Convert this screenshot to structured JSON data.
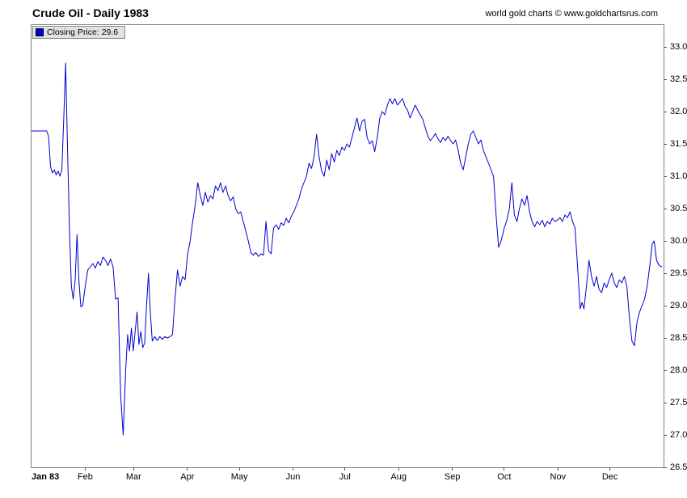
{
  "header": {
    "title": "Crude Oil - Daily 1983",
    "attribution": "world gold charts © www.goldchartsrus.com"
  },
  "legend": {
    "label": "Closing Price: 29.6",
    "swatch_color": "#0000cd"
  },
  "chart_data": {
    "type": "line",
    "title": "Crude Oil - Daily 1983",
    "series_name": "Closing Price",
    "last_value": 29.6,
    "line_color": "#0000cd",
    "grid": false,
    "legend_position": "top-left",
    "y_axis_side": "right",
    "ylim": [
      26.5,
      33.0
    ],
    "y_ticks": [
      26.5,
      27.0,
      27.5,
      28.0,
      28.5,
      29.0,
      29.5,
      30.0,
      30.5,
      31.0,
      31.5,
      32.0,
      32.5,
      33.0
    ],
    "x_tick_labels": [
      {
        "label": "Jan 83",
        "f": 0.0,
        "bold": true
      },
      {
        "label": "Feb",
        "f": 0.0849,
        "bold": false
      },
      {
        "label": "Mar",
        "f": 0.1616,
        "bold": false
      },
      {
        "label": "Apr",
        "f": 0.2466,
        "bold": false
      },
      {
        "label": "May",
        "f": 0.3288,
        "bold": false
      },
      {
        "label": "Jun",
        "f": 0.4137,
        "bold": false
      },
      {
        "label": "Jul",
        "f": 0.4959,
        "bold": false
      },
      {
        "label": "Aug",
        "f": 0.5808,
        "bold": false
      },
      {
        "label": "Sep",
        "f": 0.6658,
        "bold": false
      },
      {
        "label": "Oct",
        "f": 0.7479,
        "bold": false
      },
      {
        "label": "Nov",
        "f": 0.8329,
        "bold": false
      },
      {
        "label": "Dec",
        "f": 0.9151,
        "bold": false
      }
    ],
    "points": [
      [
        0.0,
        31.7
      ],
      [
        0.024,
        31.7
      ],
      [
        0.027,
        31.62
      ],
      [
        0.03,
        31.15
      ],
      [
        0.033,
        31.05
      ],
      [
        0.036,
        31.1
      ],
      [
        0.039,
        31.02
      ],
      [
        0.042,
        31.08
      ],
      [
        0.045,
        31.0
      ],
      [
        0.048,
        31.1
      ],
      [
        0.051,
        31.9
      ],
      [
        0.054,
        32.75
      ],
      [
        0.057,
        31.4
      ],
      [
        0.06,
        30.2
      ],
      [
        0.063,
        29.3
      ],
      [
        0.066,
        29.1
      ],
      [
        0.069,
        29.4
      ],
      [
        0.072,
        30.1
      ],
      [
        0.075,
        29.4
      ],
      [
        0.078,
        28.98
      ],
      [
        0.081,
        29.0
      ],
      [
        0.085,
        29.3
      ],
      [
        0.089,
        29.55
      ],
      [
        0.093,
        29.6
      ],
      [
        0.097,
        29.65
      ],
      [
        0.101,
        29.58
      ],
      [
        0.105,
        29.68
      ],
      [
        0.109,
        29.62
      ],
      [
        0.113,
        29.75
      ],
      [
        0.117,
        29.7
      ],
      [
        0.121,
        29.62
      ],
      [
        0.125,
        29.72
      ],
      [
        0.129,
        29.6
      ],
      [
        0.133,
        29.1
      ],
      [
        0.137,
        29.12
      ],
      [
        0.141,
        27.6
      ],
      [
        0.145,
        27.0
      ],
      [
        0.149,
        28.0
      ],
      [
        0.152,
        28.55
      ],
      [
        0.155,
        28.3
      ],
      [
        0.158,
        28.65
      ],
      [
        0.161,
        28.3
      ],
      [
        0.164,
        28.6
      ],
      [
        0.167,
        28.9
      ],
      [
        0.17,
        28.4
      ],
      [
        0.173,
        28.6
      ],
      [
        0.176,
        28.35
      ],
      [
        0.179,
        28.42
      ],
      [
        0.182,
        29.0
      ],
      [
        0.185,
        29.5
      ],
      [
        0.188,
        28.9
      ],
      [
        0.191,
        28.45
      ],
      [
        0.195,
        28.52
      ],
      [
        0.199,
        28.46
      ],
      [
        0.203,
        28.52
      ],
      [
        0.207,
        28.48
      ],
      [
        0.211,
        28.52
      ],
      [
        0.215,
        28.5
      ],
      [
        0.219,
        28.52
      ],
      [
        0.223,
        28.55
      ],
      [
        0.227,
        29.1
      ],
      [
        0.231,
        29.55
      ],
      [
        0.235,
        29.3
      ],
      [
        0.239,
        29.45
      ],
      [
        0.243,
        29.4
      ],
      [
        0.247,
        29.8
      ],
      [
        0.251,
        30.0
      ],
      [
        0.255,
        30.3
      ],
      [
        0.259,
        30.55
      ],
      [
        0.263,
        30.9
      ],
      [
        0.267,
        30.7
      ],
      [
        0.271,
        30.55
      ],
      [
        0.275,
        30.75
      ],
      [
        0.279,
        30.6
      ],
      [
        0.283,
        30.7
      ],
      [
        0.287,
        30.65
      ],
      [
        0.291,
        30.85
      ],
      [
        0.295,
        30.78
      ],
      [
        0.299,
        30.9
      ],
      [
        0.303,
        30.75
      ],
      [
        0.307,
        30.85
      ],
      [
        0.311,
        30.7
      ],
      [
        0.315,
        30.62
      ],
      [
        0.319,
        30.68
      ],
      [
        0.323,
        30.5
      ],
      [
        0.327,
        30.42
      ],
      [
        0.331,
        30.45
      ],
      [
        0.335,
        30.3
      ],
      [
        0.339,
        30.15
      ],
      [
        0.343,
        30.0
      ],
      [
        0.347,
        29.82
      ],
      [
        0.351,
        29.78
      ],
      [
        0.355,
        29.82
      ],
      [
        0.359,
        29.76
      ],
      [
        0.363,
        29.8
      ],
      [
        0.367,
        29.78
      ],
      [
        0.371,
        30.3
      ],
      [
        0.375,
        29.85
      ],
      [
        0.379,
        29.8
      ],
      [
        0.383,
        30.2
      ],
      [
        0.387,
        30.25
      ],
      [
        0.391,
        30.18
      ],
      [
        0.395,
        30.28
      ],
      [
        0.399,
        30.24
      ],
      [
        0.403,
        30.35
      ],
      [
        0.407,
        30.28
      ],
      [
        0.411,
        30.38
      ],
      [
        0.415,
        30.45
      ],
      [
        0.419,
        30.55
      ],
      [
        0.423,
        30.65
      ],
      [
        0.427,
        30.8
      ],
      [
        0.431,
        30.9
      ],
      [
        0.435,
        31.0
      ],
      [
        0.439,
        31.2
      ],
      [
        0.443,
        31.12
      ],
      [
        0.447,
        31.3
      ],
      [
        0.451,
        31.65
      ],
      [
        0.455,
        31.3
      ],
      [
        0.459,
        31.08
      ],
      [
        0.463,
        31.0
      ],
      [
        0.467,
        31.25
      ],
      [
        0.471,
        31.1
      ],
      [
        0.475,
        31.35
      ],
      [
        0.479,
        31.22
      ],
      [
        0.483,
        31.4
      ],
      [
        0.487,
        31.32
      ],
      [
        0.491,
        31.45
      ],
      [
        0.495,
        31.4
      ],
      [
        0.499,
        31.5
      ],
      [
        0.503,
        31.45
      ],
      [
        0.507,
        31.6
      ],
      [
        0.511,
        31.75
      ],
      [
        0.515,
        31.9
      ],
      [
        0.519,
        31.7
      ],
      [
        0.523,
        31.85
      ],
      [
        0.527,
        31.88
      ],
      [
        0.531,
        31.6
      ],
      [
        0.535,
        31.5
      ],
      [
        0.539,
        31.55
      ],
      [
        0.543,
        31.38
      ],
      [
        0.547,
        31.6
      ],
      [
        0.551,
        31.9
      ],
      [
        0.555,
        32.0
      ],
      [
        0.559,
        31.95
      ],
      [
        0.563,
        32.1
      ],
      [
        0.567,
        32.2
      ],
      [
        0.571,
        32.12
      ],
      [
        0.575,
        32.2
      ],
      [
        0.579,
        32.1
      ],
      [
        0.583,
        32.15
      ],
      [
        0.587,
        32.2
      ],
      [
        0.591,
        32.08
      ],
      [
        0.595,
        32.02
      ],
      [
        0.599,
        31.9
      ],
      [
        0.603,
        32.0
      ],
      [
        0.607,
        32.1
      ],
      [
        0.611,
        32.02
      ],
      [
        0.615,
        31.95
      ],
      [
        0.619,
        31.88
      ],
      [
        0.623,
        31.75
      ],
      [
        0.627,
        31.62
      ],
      [
        0.631,
        31.55
      ],
      [
        0.635,
        31.6
      ],
      [
        0.639,
        31.66
      ],
      [
        0.643,
        31.58
      ],
      [
        0.647,
        31.52
      ],
      [
        0.651,
        31.6
      ],
      [
        0.655,
        31.55
      ],
      [
        0.659,
        31.62
      ],
      [
        0.663,
        31.55
      ],
      [
        0.667,
        31.5
      ],
      [
        0.671,
        31.56
      ],
      [
        0.675,
        31.4
      ],
      [
        0.679,
        31.2
      ],
      [
        0.683,
        31.1
      ],
      [
        0.687,
        31.3
      ],
      [
        0.691,
        31.5
      ],
      [
        0.695,
        31.65
      ],
      [
        0.699,
        31.7
      ],
      [
        0.703,
        31.6
      ],
      [
        0.707,
        31.5
      ],
      [
        0.711,
        31.56
      ],
      [
        0.715,
        31.4
      ],
      [
        0.719,
        31.3
      ],
      [
        0.723,
        31.2
      ],
      [
        0.727,
        31.1
      ],
      [
        0.731,
        31.0
      ],
      [
        0.735,
        30.4
      ],
      [
        0.739,
        29.9
      ],
      [
        0.743,
        30.0
      ],
      [
        0.748,
        30.2
      ],
      [
        0.752,
        30.32
      ],
      [
        0.756,
        30.5
      ],
      [
        0.76,
        30.9
      ],
      [
        0.764,
        30.4
      ],
      [
        0.768,
        30.3
      ],
      [
        0.772,
        30.5
      ],
      [
        0.776,
        30.65
      ],
      [
        0.78,
        30.55
      ],
      [
        0.784,
        30.7
      ],
      [
        0.788,
        30.45
      ],
      [
        0.792,
        30.3
      ],
      [
        0.796,
        30.22
      ],
      [
        0.8,
        30.3
      ],
      [
        0.804,
        30.25
      ],
      [
        0.808,
        30.32
      ],
      [
        0.812,
        30.22
      ],
      [
        0.816,
        30.3
      ],
      [
        0.82,
        30.26
      ],
      [
        0.824,
        30.35
      ],
      [
        0.828,
        30.3
      ],
      [
        0.832,
        30.32
      ],
      [
        0.836,
        30.36
      ],
      [
        0.84,
        30.3
      ],
      [
        0.844,
        30.4
      ],
      [
        0.848,
        30.36
      ],
      [
        0.852,
        30.45
      ],
      [
        0.856,
        30.3
      ],
      [
        0.86,
        30.2
      ],
      [
        0.864,
        29.6
      ],
      [
        0.868,
        28.95
      ],
      [
        0.871,
        29.05
      ],
      [
        0.874,
        28.95
      ],
      [
        0.878,
        29.3
      ],
      [
        0.882,
        29.7
      ],
      [
        0.886,
        29.45
      ],
      [
        0.89,
        29.3
      ],
      [
        0.894,
        29.45
      ],
      [
        0.898,
        29.25
      ],
      [
        0.902,
        29.2
      ],
      [
        0.906,
        29.35
      ],
      [
        0.91,
        29.28
      ],
      [
        0.914,
        29.4
      ],
      [
        0.918,
        29.5
      ],
      [
        0.922,
        29.35
      ],
      [
        0.926,
        29.28
      ],
      [
        0.93,
        29.4
      ],
      [
        0.934,
        29.35
      ],
      [
        0.938,
        29.45
      ],
      [
        0.942,
        29.3
      ],
      [
        0.946,
        28.8
      ],
      [
        0.95,
        28.45
      ],
      [
        0.954,
        28.38
      ],
      [
        0.958,
        28.75
      ],
      [
        0.962,
        28.9
      ],
      [
        0.966,
        29.0
      ],
      [
        0.97,
        29.1
      ],
      [
        0.974,
        29.3
      ],
      [
        0.978,
        29.6
      ],
      [
        0.982,
        29.95
      ],
      [
        0.985,
        30.0
      ],
      [
        0.989,
        29.7
      ],
      [
        0.993,
        29.62
      ],
      [
        0.997,
        29.6
      ]
    ]
  }
}
